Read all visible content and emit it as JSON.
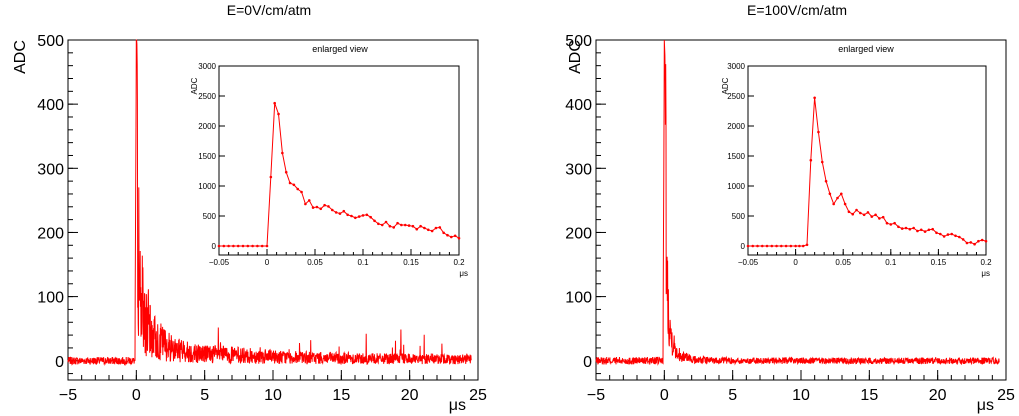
{
  "chart_data": [
    {
      "type": "line",
      "title": "E=0V/cm/atm",
      "xlabel": "μs",
      "ylabel": "ADC",
      "xlim": [
        -5,
        25
      ],
      "ylim": [
        -30,
        500
      ],
      "xticks": [
        -5,
        0,
        5,
        10,
        15,
        20,
        25
      ],
      "yticks": [
        0,
        100,
        200,
        300,
        400,
        500
      ],
      "color": "#ff0000",
      "series": [
        {
          "x": [
            -5,
            -4,
            -3,
            -2,
            -1,
            -0.5,
            -0.1,
            0,
            0.05,
            0.1,
            0.15,
            0.2,
            0.3,
            0.4,
            0.5,
            0.6,
            0.7,
            0.8,
            0.9,
            1.0,
            1.2,
            1.4,
            1.6,
            1.8,
            2.0,
            2.5,
            3,
            3.5,
            4,
            5,
            6,
            7,
            8,
            9,
            10,
            12,
            14,
            16,
            18,
            20,
            22,
            24.5
          ],
          "y": [
            0,
            0,
            0,
            0,
            0,
            0,
            0,
            500,
            480,
            340,
            220,
            140,
            110,
            95,
            80,
            70,
            60,
            55,
            50,
            45,
            40,
            36,
            33,
            30,
            27,
            22,
            18,
            15,
            13,
            11,
            10,
            9,
            8,
            7,
            6,
            5,
            4,
            4,
            3,
            3,
            3,
            2
          ]
        }
      ],
      "inset": {
        "title": "enlarged view",
        "ylabel": "ADC",
        "xlabel": "μs",
        "xlim": [
          -0.05,
          0.2
        ],
        "ylim": [
          -150,
          3000
        ],
        "xticks": [
          -0.05,
          0,
          0.05,
          0.1,
          0.15,
          0.2
        ],
        "xtick_labels": [
          "−0.05",
          "0",
          "0.05",
          "0.1",
          "0.15",
          "0.2"
        ],
        "yticks": [
          0,
          500,
          1000,
          1500,
          2000,
          2500,
          3000
        ],
        "x": [
          -0.05,
          -0.045,
          -0.04,
          -0.035,
          -0.03,
          -0.025,
          -0.02,
          -0.015,
          -0.01,
          -0.005,
          0.0,
          0.004,
          0.008,
          0.012,
          0.016,
          0.02,
          0.024,
          0.028,
          0.032,
          0.036,
          0.04,
          0.044,
          0.048,
          0.052,
          0.056,
          0.06,
          0.064,
          0.068,
          0.072,
          0.076,
          0.08,
          0.084,
          0.088,
          0.092,
          0.096,
          0.1,
          0.104,
          0.108,
          0.112,
          0.116,
          0.12,
          0.124,
          0.128,
          0.132,
          0.136,
          0.14,
          0.144,
          0.148,
          0.152,
          0.156,
          0.16,
          0.164,
          0.168,
          0.172,
          0.176,
          0.18,
          0.184,
          0.188,
          0.192,
          0.196,
          0.2
        ],
        "y": [
          0,
          0,
          0,
          0,
          0,
          0,
          0,
          0,
          0,
          0,
          0,
          1150,
          2380,
          2200,
          1550,
          1230,
          1050,
          1020,
          950,
          900,
          700,
          760,
          640,
          650,
          620,
          680,
          660,
          600,
          560,
          540,
          580,
          520,
          500,
          470,
          490,
          510,
          520,
          480,
          420,
          370,
          350,
          400,
          330,
          310,
          380,
          350,
          350,
          340,
          330,
          280,
          330,
          300,
          270,
          250,
          300,
          310,
          220,
          180,
          150,
          170,
          130
        ]
      }
    },
    {
      "type": "line",
      "title": "E=100V/cm/atm",
      "xlabel": "μs",
      "ylabel": "ADC",
      "xlim": [
        -5,
        25
      ],
      "ylim": [
        -30,
        500
      ],
      "xticks": [
        -5,
        0,
        5,
        10,
        15,
        20,
        25
      ],
      "yticks": [
        0,
        100,
        200,
        300,
        400,
        500
      ],
      "color": "#ff0000",
      "series": [
        {
          "x": [
            -5,
            -4,
            -3,
            -2,
            -1,
            -0.5,
            -0.1,
            0,
            0.05,
            0.1,
            0.15,
            0.2,
            0.3,
            0.4,
            0.5,
            0.6,
            0.8,
            1.0,
            1.2,
            1.5,
            2.0,
            3,
            5,
            10,
            15,
            20,
            24.5
          ],
          "y": [
            0,
            0,
            0,
            0,
            0,
            0,
            0,
            500,
            470,
            300,
            200,
            120,
            80,
            60,
            40,
            30,
            20,
            12,
            8,
            5,
            3,
            1,
            0,
            0,
            0,
            0,
            0
          ]
        }
      ],
      "inset": {
        "title": "enlarged view",
        "ylabel": "ADC",
        "xlabel": "μs",
        "xlim": [
          -0.05,
          0.2
        ],
        "ylim": [
          -150,
          3000
        ],
        "xticks": [
          -0.05,
          0,
          0.05,
          0.1,
          0.15,
          0.2
        ],
        "xtick_labels": [
          "−0.05",
          "0",
          "0.05",
          "0.1",
          "0.15",
          "0.2"
        ],
        "yticks": [
          0,
          500,
          1000,
          1500,
          2000,
          2500,
          3000
        ],
        "x": [
          -0.05,
          -0.045,
          -0.04,
          -0.035,
          -0.03,
          -0.025,
          -0.02,
          -0.015,
          -0.01,
          -0.005,
          0.0,
          0.004,
          0.008,
          0.012,
          0.016,
          0.02,
          0.024,
          0.028,
          0.032,
          0.036,
          0.04,
          0.044,
          0.048,
          0.052,
          0.056,
          0.06,
          0.064,
          0.068,
          0.072,
          0.076,
          0.08,
          0.084,
          0.088,
          0.092,
          0.096,
          0.1,
          0.104,
          0.108,
          0.112,
          0.116,
          0.12,
          0.124,
          0.128,
          0.132,
          0.136,
          0.14,
          0.144,
          0.148,
          0.152,
          0.156,
          0.16,
          0.164,
          0.168,
          0.172,
          0.176,
          0.18,
          0.184,
          0.188,
          0.192,
          0.196,
          0.2
        ],
        "y": [
          0,
          0,
          0,
          0,
          0,
          0,
          0,
          0,
          0,
          0,
          0,
          0,
          0,
          20,
          1430,
          2470,
          1900,
          1400,
          1080,
          870,
          700,
          800,
          870,
          700,
          570,
          530,
          600,
          550,
          520,
          560,
          490,
          520,
          460,
          480,
          380,
          360,
          380,
          320,
          290,
          300,
          280,
          300,
          250,
          270,
          240,
          270,
          280,
          220,
          200,
          160,
          190,
          200,
          170,
          150,
          110,
          50,
          60,
          30,
          80,
          100,
          80
        ]
      }
    }
  ]
}
